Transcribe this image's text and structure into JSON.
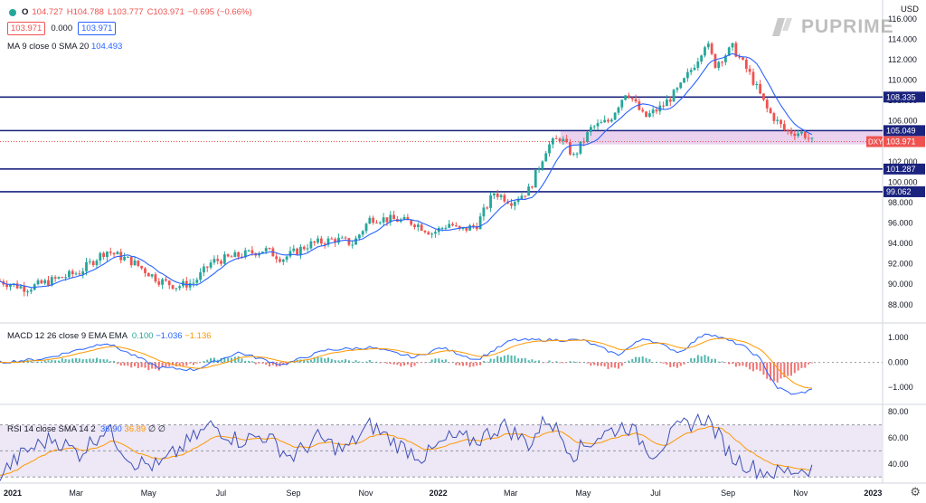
{
  "header": {
    "symbol": "O",
    "open": "104.727",
    "high": "H104.788",
    "low": "L103.777",
    "close": "C103.971",
    "change": "−0.695 (−0.66%)",
    "bid": "103.971",
    "spread": "0.000",
    "ask": "103.971",
    "currency": "USD"
  },
  "ma_legend": {
    "label": "MA 9 close 0 SMA 20",
    "value": "104.493"
  },
  "macd_legend": {
    "label": "MACD 12 26 close 9 EMA EMA",
    "v1": "0.100",
    "v2": "−1.036",
    "v3": "−1.136"
  },
  "rsi_legend": {
    "label": "RSI 14 close SMA 14 2",
    "v1": "36.90",
    "v2": "36.89",
    "v3": "∅",
    "v4": "∅"
  },
  "logo_text": "PUPRIME",
  "colors": {
    "up": "#26a69a",
    "down": "#ef5350",
    "level": "#1a237e",
    "zone": "#e1bee7",
    "ma": "#2962ff",
    "signal": "#ff9800",
    "rsi": "#3f51b5",
    "rsi_band": "#ede7f6"
  },
  "chart_data": [
    {
      "type": "candlestick",
      "symbol": "DXY",
      "x_labels": [
        "2021",
        "Mar",
        "May",
        "Jul",
        "Sep",
        "Nov",
        "2022",
        "Mar",
        "May",
        "Jul",
        "Sep",
        "Nov",
        "2023"
      ],
      "y_ticks": [
        "88.000",
        "90.000",
        "92.000",
        "94.000",
        "96.000",
        "98.000",
        "100.000",
        "102.000",
        "104.000",
        "106.000",
        "108.000",
        "110.000",
        "112.000",
        "114.000",
        "116.000"
      ],
      "ylim": [
        86.3,
        116.6
      ],
      "price_path": [
        [
          0,
          90.3
        ],
        [
          0.03,
          89.6
        ],
        [
          0.06,
          90.4
        ],
        [
          0.09,
          91.2
        ],
        [
          0.12,
          93.3
        ],
        [
          0.15,
          92.2
        ],
        [
          0.18,
          90.4
        ],
        [
          0.2,
          89.8
        ],
        [
          0.22,
          90.2
        ],
        [
          0.24,
          92.2
        ],
        [
          0.27,
          92.8
        ],
        [
          0.3,
          93.4
        ],
        [
          0.32,
          92.5
        ],
        [
          0.35,
          93.9
        ],
        [
          0.38,
          94.4
        ],
        [
          0.4,
          94.0
        ],
        [
          0.42,
          96.5
        ],
        [
          0.45,
          96.3
        ],
        [
          0.47,
          96.0
        ],
        [
          0.49,
          95.0
        ],
        [
          0.51,
          96.0
        ],
        [
          0.52,
          95.2
        ],
        [
          0.54,
          95.8
        ],
        [
          0.56,
          99.0
        ],
        [
          0.58,
          98.1
        ],
        [
          0.6,
          99.3
        ],
        [
          0.62,
          103.5
        ],
        [
          0.635,
          104.4
        ],
        [
          0.65,
          102.5
        ],
        [
          0.67,
          105.3
        ],
        [
          0.69,
          106.0
        ],
        [
          0.71,
          109.0
        ],
        [
          0.73,
          106.3
        ],
        [
          0.75,
          107.4
        ],
        [
          0.77,
          109.2
        ],
        [
          0.79,
          112.0
        ],
        [
          0.8,
          113.8
        ],
        [
          0.81,
          111.5
        ],
        [
          0.83,
          113.2
        ],
        [
          0.85,
          110.5
        ],
        [
          0.87,
          107.0
        ],
        [
          0.89,
          105.0
        ],
        [
          0.91,
          104.8
        ],
        [
          0.92,
          103.97
        ]
      ],
      "ma_label": "MA 9 close 0 SMA 20",
      "ma_value": 104.493,
      "horizontal_levels": [
        108.335,
        105.049,
        101.287,
        99.062
      ],
      "zone": [
        103.7,
        105.049
      ],
      "last_price": 103.971
    },
    {
      "type": "line",
      "name": "MACD 12 26 close 9 EMA EMA",
      "y_ticks": [
        "1.000",
        "0.000",
        "−1.000"
      ],
      "ylim": [
        -1.65,
        1.55
      ],
      "macd_path": [
        [
          0,
          0.0
        ],
        [
          0.05,
          0.15
        ],
        [
          0.12,
          0.8
        ],
        [
          0.18,
          -0.2
        ],
        [
          0.22,
          -0.3
        ],
        [
          0.27,
          0.4
        ],
        [
          0.32,
          -0.1
        ],
        [
          0.37,
          0.5
        ],
        [
          0.42,
          0.6
        ],
        [
          0.47,
          0.2
        ],
        [
          0.5,
          0.6
        ],
        [
          0.54,
          0.1
        ],
        [
          0.58,
          0.9
        ],
        [
          0.62,
          0.9
        ],
        [
          0.66,
          0.9
        ],
        [
          0.7,
          0.3
        ],
        [
          0.73,
          1.0
        ],
        [
          0.77,
          0.4
        ],
        [
          0.8,
          1.2
        ],
        [
          0.84,
          0.7
        ],
        [
          0.86,
          0.2
        ],
        [
          0.88,
          -1.0
        ],
        [
          0.9,
          -1.3
        ],
        [
          0.92,
          -1.1
        ]
      ],
      "values": [
        0.1,
        -1.036,
        -1.136
      ]
    },
    {
      "type": "line",
      "name": "RSI 14 close SMA 14 2",
      "y_ticks": [
        "80.00",
        "60.00",
        "40.00"
      ],
      "ylim": [
        26,
        85
      ],
      "band": [
        30,
        70
      ],
      "rsi_path": [
        [
          0,
          32
        ],
        [
          0.03,
          50
        ],
        [
          0.06,
          60
        ],
        [
          0.09,
          48
        ],
        [
          0.12,
          68
        ],
        [
          0.15,
          42
        ],
        [
          0.18,
          38
        ],
        [
          0.21,
          55
        ],
        [
          0.24,
          70
        ],
        [
          0.27,
          58
        ],
        [
          0.3,
          62
        ],
        [
          0.33,
          45
        ],
        [
          0.36,
          60
        ],
        [
          0.39,
          50
        ],
        [
          0.42,
          70
        ],
        [
          0.45,
          55
        ],
        [
          0.48,
          45
        ],
        [
          0.51,
          60
        ],
        [
          0.54,
          58
        ],
        [
          0.57,
          70
        ],
        [
          0.6,
          55
        ],
        [
          0.62,
          76
        ],
        [
          0.65,
          48
        ],
        [
          0.68,
          62
        ],
        [
          0.71,
          70
        ],
        [
          0.74,
          48
        ],
        [
          0.77,
          68
        ],
        [
          0.8,
          76
        ],
        [
          0.83,
          45
        ],
        [
          0.86,
          35
        ],
        [
          0.88,
          33
        ],
        [
          0.9,
          35
        ],
        [
          0.92,
          37
        ]
      ],
      "values": [
        36.9,
        36.89
      ]
    }
  ]
}
